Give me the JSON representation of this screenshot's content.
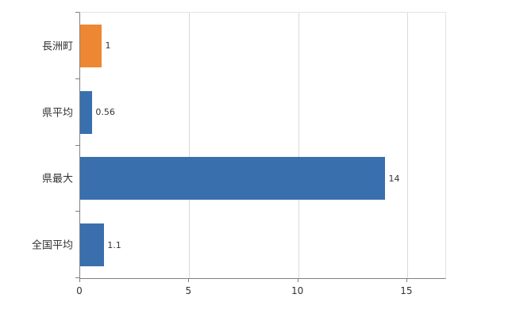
{
  "chart_data": {
    "type": "bar",
    "orientation": "horizontal",
    "title": "",
    "categories": [
      "長洲町",
      "県平均",
      "県最大",
      "全国平均"
    ],
    "values": [
      1,
      0.56,
      14,
      1.1
    ],
    "value_labels": [
      "1",
      "0.56",
      "14",
      "1.1"
    ],
    "series": [
      {
        "name": "value",
        "values": [
          1,
          0.56,
          14,
          1.1
        ]
      }
    ],
    "bar_colors": [
      "#EE8733",
      "#3A6FAE",
      "#3A6FAE",
      "#3A6FAE"
    ],
    "x_ticks": [
      "0",
      "5",
      "10",
      "15"
    ],
    "x_tick_values": [
      0,
      5,
      10,
      15
    ],
    "xlim": [
      0,
      16.75
    ],
    "grid": true,
    "legend_position": "none"
  },
  "colors": {
    "orange_bar": "#EE8733",
    "blue_bar": "#3A6FAE",
    "axis": "#808080",
    "gridline": "#d9d9d9",
    "plot_border": "#e3e3e3",
    "text": "#333333",
    "background": "#ffffff"
  }
}
